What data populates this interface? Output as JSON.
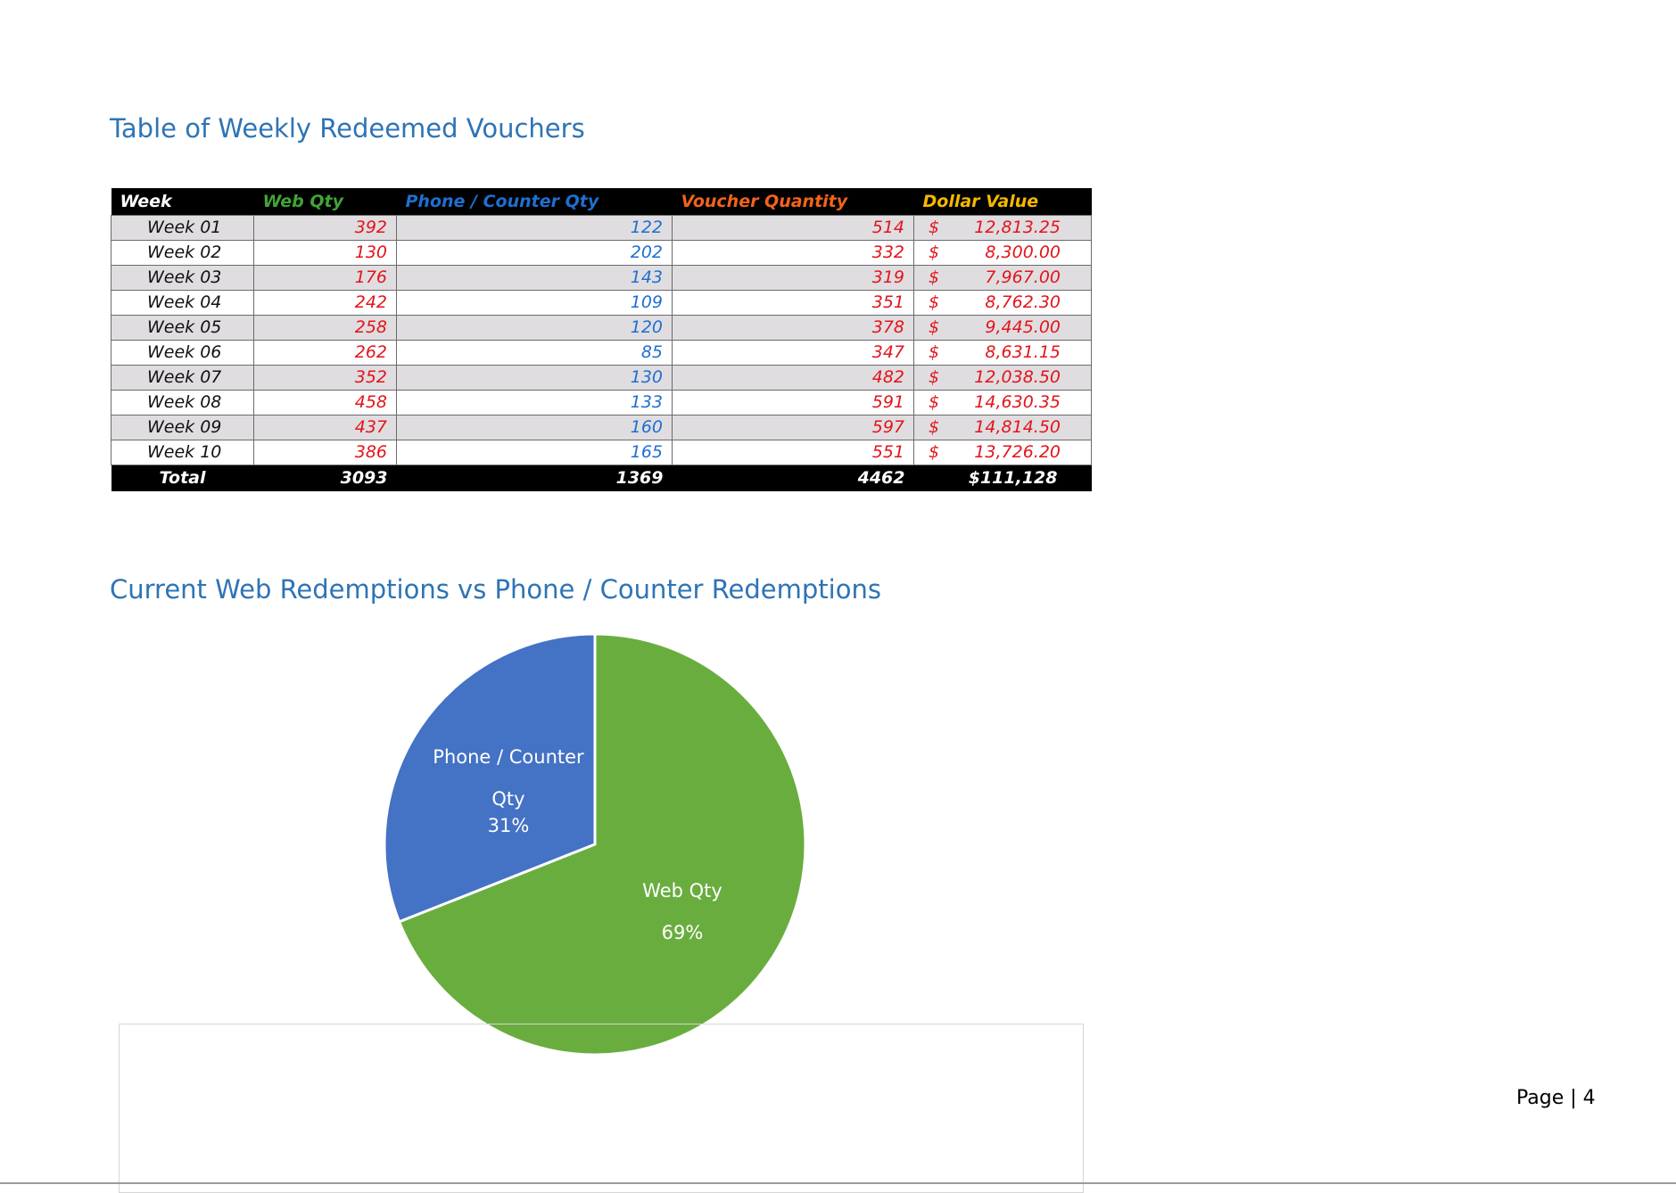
{
  "sections": {
    "table_heading": "Table of Weekly Redeemed Vouchers",
    "chart_heading": "Current Web Redemptions vs Phone / Counter Redemptions"
  },
  "table": {
    "headers": [
      "Week",
      "Web Qty",
      "Phone / Counter Qty",
      "Voucher Quantity",
      "Dollar Value"
    ],
    "header_colors": {
      "week": "#ffffff",
      "web": "#3fa535",
      "phone": "#1f6fd1",
      "voucher": "#f2631c",
      "dollar": "#f5b800"
    },
    "rows": [
      {
        "week": "Week 01",
        "web": "392",
        "phone": "122",
        "voucher": "514",
        "currency": "$",
        "dollar": "12,813.25"
      },
      {
        "week": "Week 02",
        "web": "130",
        "phone": "202",
        "voucher": "332",
        "currency": "$",
        "dollar": "8,300.00"
      },
      {
        "week": "Week 03",
        "web": "176",
        "phone": "143",
        "voucher": "319",
        "currency": "$",
        "dollar": "7,967.00"
      },
      {
        "week": "Week 04",
        "web": "242",
        "phone": "109",
        "voucher": "351",
        "currency": "$",
        "dollar": "8,762.30"
      },
      {
        "week": "Week 05",
        "web": "258",
        "phone": "120",
        "voucher": "378",
        "currency": "$",
        "dollar": "9,445.00"
      },
      {
        "week": "Week 06",
        "web": "262",
        "phone": "85",
        "voucher": "347",
        "currency": "$",
        "dollar": "8,631.15"
      },
      {
        "week": "Week 07",
        "web": "352",
        "phone": "130",
        "voucher": "482",
        "currency": "$",
        "dollar": "12,038.50"
      },
      {
        "week": "Week 08",
        "web": "458",
        "phone": "133",
        "voucher": "591",
        "currency": "$",
        "dollar": "14,630.35"
      },
      {
        "week": "Week 09",
        "web": "437",
        "phone": "160",
        "voucher": "597",
        "currency": "$",
        "dollar": "14,814.50"
      },
      {
        "week": "Week 10",
        "web": "386",
        "phone": "165",
        "voucher": "551",
        "currency": "$",
        "dollar": "13,726.20"
      }
    ],
    "total": {
      "label": "Total",
      "web": "3093",
      "phone": "1369",
      "voucher": "4462",
      "dollar": "$111,128"
    }
  },
  "chart_data": {
    "type": "pie",
    "slices": [
      {
        "label_line1": "Phone / Counter",
        "label_line2": "Qty",
        "percent_label": "31%",
        "value": 31,
        "color": "#4472c4"
      },
      {
        "label_line1": "Web Qty",
        "label_line2": "",
        "percent_label": "69%",
        "value": 69,
        "color": "#6aad3f"
      }
    ],
    "start_angle_deg": 0,
    "direction": "counterclockwise"
  },
  "footer": {
    "page_label": "Page | 4"
  }
}
